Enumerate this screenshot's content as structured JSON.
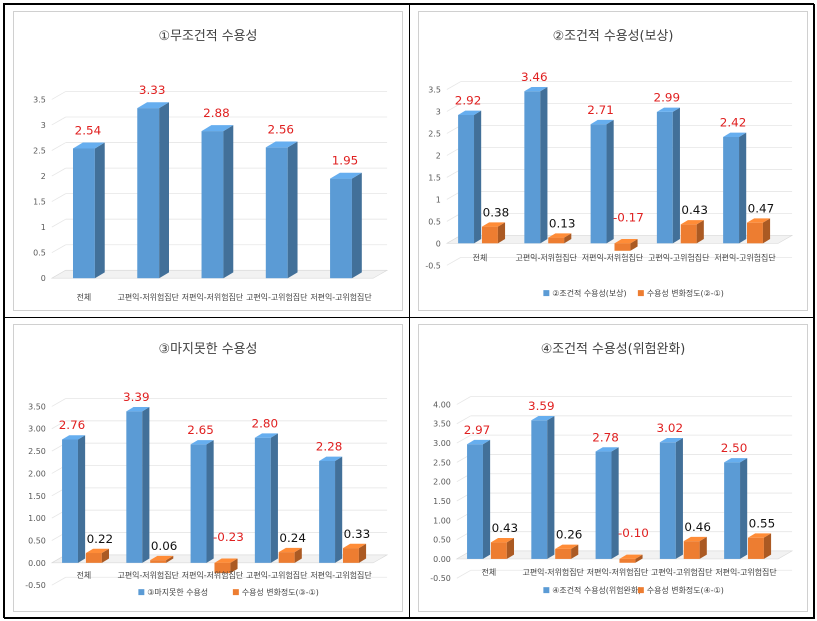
{
  "colors": {
    "blue": "#5b9bd5",
    "orange": "#ed7d31",
    "label_red": "#e02020",
    "label_dark": "#111111"
  },
  "categories": [
    "전체",
    "고편익-저위험집단",
    "저편익-저위험집단",
    "고편익-고위험집단",
    "저편익-고위험집단"
  ],
  "chart_data": [
    {
      "type": "bar",
      "title": "①무조건적 수용성",
      "categories": [
        "전체",
        "고편익-저위험집단",
        "저편익-저위험집단",
        "고편익-고위험집단",
        "저편익-고위험집단"
      ],
      "series": [
        {
          "values": [
            2.54,
            3.33,
            2.88,
            2.56,
            1.95
          ],
          "labels": [
            "2.54",
            "3.33",
            "2.88",
            "2.56",
            "1.95"
          ]
        }
      ],
      "ylim": [
        0,
        3.5
      ],
      "yticks": [
        "0",
        "0.5",
        "1",
        "1.5",
        "2",
        "2.5",
        "3",
        "3.5"
      ],
      "ystep": 0.5,
      "legend": null
    },
    {
      "type": "bar",
      "title": "②조건적 수용성(보상)",
      "categories": [
        "전체",
        "고편익-저위험집단",
        "저편익-저위험집단",
        "고편익-고위험집단",
        "저편익-고위험집단"
      ],
      "series": [
        {
          "name": "②조건적 수용성(보상)",
          "values": [
            2.92,
            3.46,
            2.71,
            2.99,
            2.42
          ],
          "labels": [
            "2.92",
            "3.46",
            "2.71",
            "2.99",
            "2.42"
          ]
        },
        {
          "name": "수용성 변화정도(②-①)",
          "values": [
            0.38,
            0.13,
            -0.17,
            0.43,
            0.47
          ],
          "labels": [
            "0.38",
            "0.13",
            "-0.17",
            "0.43",
            "0.47"
          ]
        }
      ],
      "ylim": [
        -0.5,
        3.5
      ],
      "yticks": [
        "-0.5",
        "0",
        "0.5",
        "1",
        "1.5",
        "2",
        "2.5",
        "3",
        "3.5"
      ],
      "ystep": 0.5,
      "legend": "bottom"
    },
    {
      "type": "bar",
      "title": "③마지못한 수용성",
      "categories": [
        "전체",
        "고편익-저위험집단",
        "저편익-저위험집단",
        "고편익-고위험집단",
        "저편익-고위험집단"
      ],
      "series": [
        {
          "name": "③마지못한 수용성",
          "values": [
            2.76,
            3.39,
            2.65,
            2.8,
            2.28
          ],
          "labels": [
            "2.76",
            "3.39",
            "2.65",
            "2.80",
            "2.28"
          ]
        },
        {
          "name": "수용성 변화정도(③-①)",
          "values": [
            0.22,
            0.06,
            -0.23,
            0.24,
            0.33
          ],
          "labels": [
            "0.22",
            "0.06",
            "-0.23",
            "0.24",
            "0.33"
          ]
        }
      ],
      "ylim": [
        -0.5,
        3.5
      ],
      "yticks": [
        "-0.50",
        "0.00",
        "0.50",
        "1.00",
        "1.50",
        "2.00",
        "2.50",
        "3.00",
        "3.50"
      ],
      "ystep": 0.5,
      "legend": "bottom"
    },
    {
      "type": "bar",
      "title": "④조건적 수용성(위험완화)",
      "categories": [
        "전체",
        "고편익-저위험집단",
        "저편익-저위험집단",
        "고편익-고위험집단",
        "저편익-고위험집단"
      ],
      "series": [
        {
          "name": "④조건적 수용성(위험완화)",
          "values": [
            2.97,
            3.59,
            2.78,
            3.02,
            2.5
          ],
          "labels": [
            "2.97",
            "3.59",
            "2.78",
            "3.02",
            "2.50"
          ]
        },
        {
          "name": "수용성 변화정도(④-①)",
          "values": [
            0.43,
            0.26,
            -0.1,
            0.46,
            0.55
          ],
          "labels": [
            "0.43",
            "0.26",
            "-0.10",
            "0.46",
            "0.55"
          ]
        }
      ],
      "ylim": [
        -0.5,
        4.0
      ],
      "yticks": [
        "-0.50",
        "0.00",
        "0.50",
        "1.00",
        "1.50",
        "2.00",
        "2.50",
        "3.00",
        "3.50",
        "4.00"
      ],
      "ystep": 0.5,
      "legend": "bottom"
    }
  ]
}
